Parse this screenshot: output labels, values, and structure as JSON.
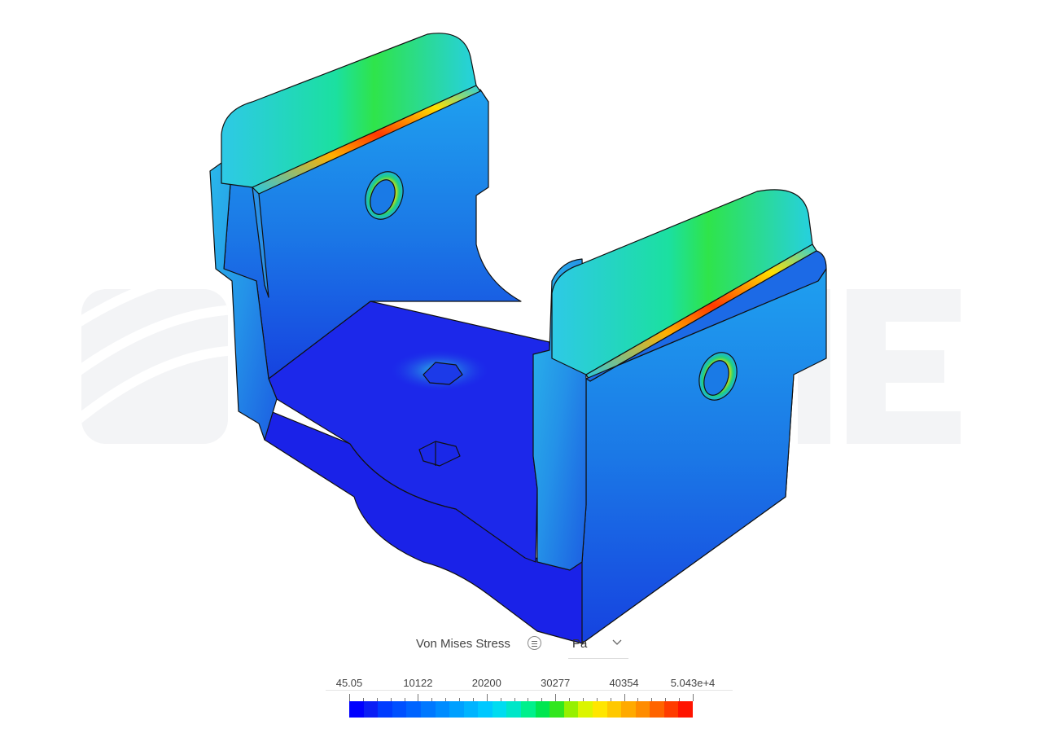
{
  "viewport": {
    "watermark_text": "SIMSCALE"
  },
  "result": {
    "label": "Von Mises Stress",
    "unit": "Pa",
    "info_icon": "list-icon",
    "dropdown_icon": "chevron-down-icon"
  },
  "legend": {
    "tick_labels": [
      "45.05",
      "10122",
      "20200",
      "30277",
      "40354",
      "5.043e+4"
    ],
    "min": 45.05,
    "max": 50430,
    "minor_divisions": 5,
    "colors": [
      "#0000ff",
      "#0a1ef5",
      "#003cff",
      "#0050ff",
      "#0064ff",
      "#0078ff",
      "#008cff",
      "#00a0ff",
      "#00b4ff",
      "#00c8ff",
      "#00dcf0",
      "#00e6c8",
      "#00f08c",
      "#00e650",
      "#32e61e",
      "#96f000",
      "#dcf500",
      "#ffe600",
      "#ffc800",
      "#ffaa00",
      "#ff8c00",
      "#ff6400",
      "#ff3c00",
      "#ff1400"
    ]
  },
  "colors": {
    "low_stress": "#1a1aee",
    "mid_stress": "#22d4e0",
    "high_stress": "#ff3000"
  }
}
